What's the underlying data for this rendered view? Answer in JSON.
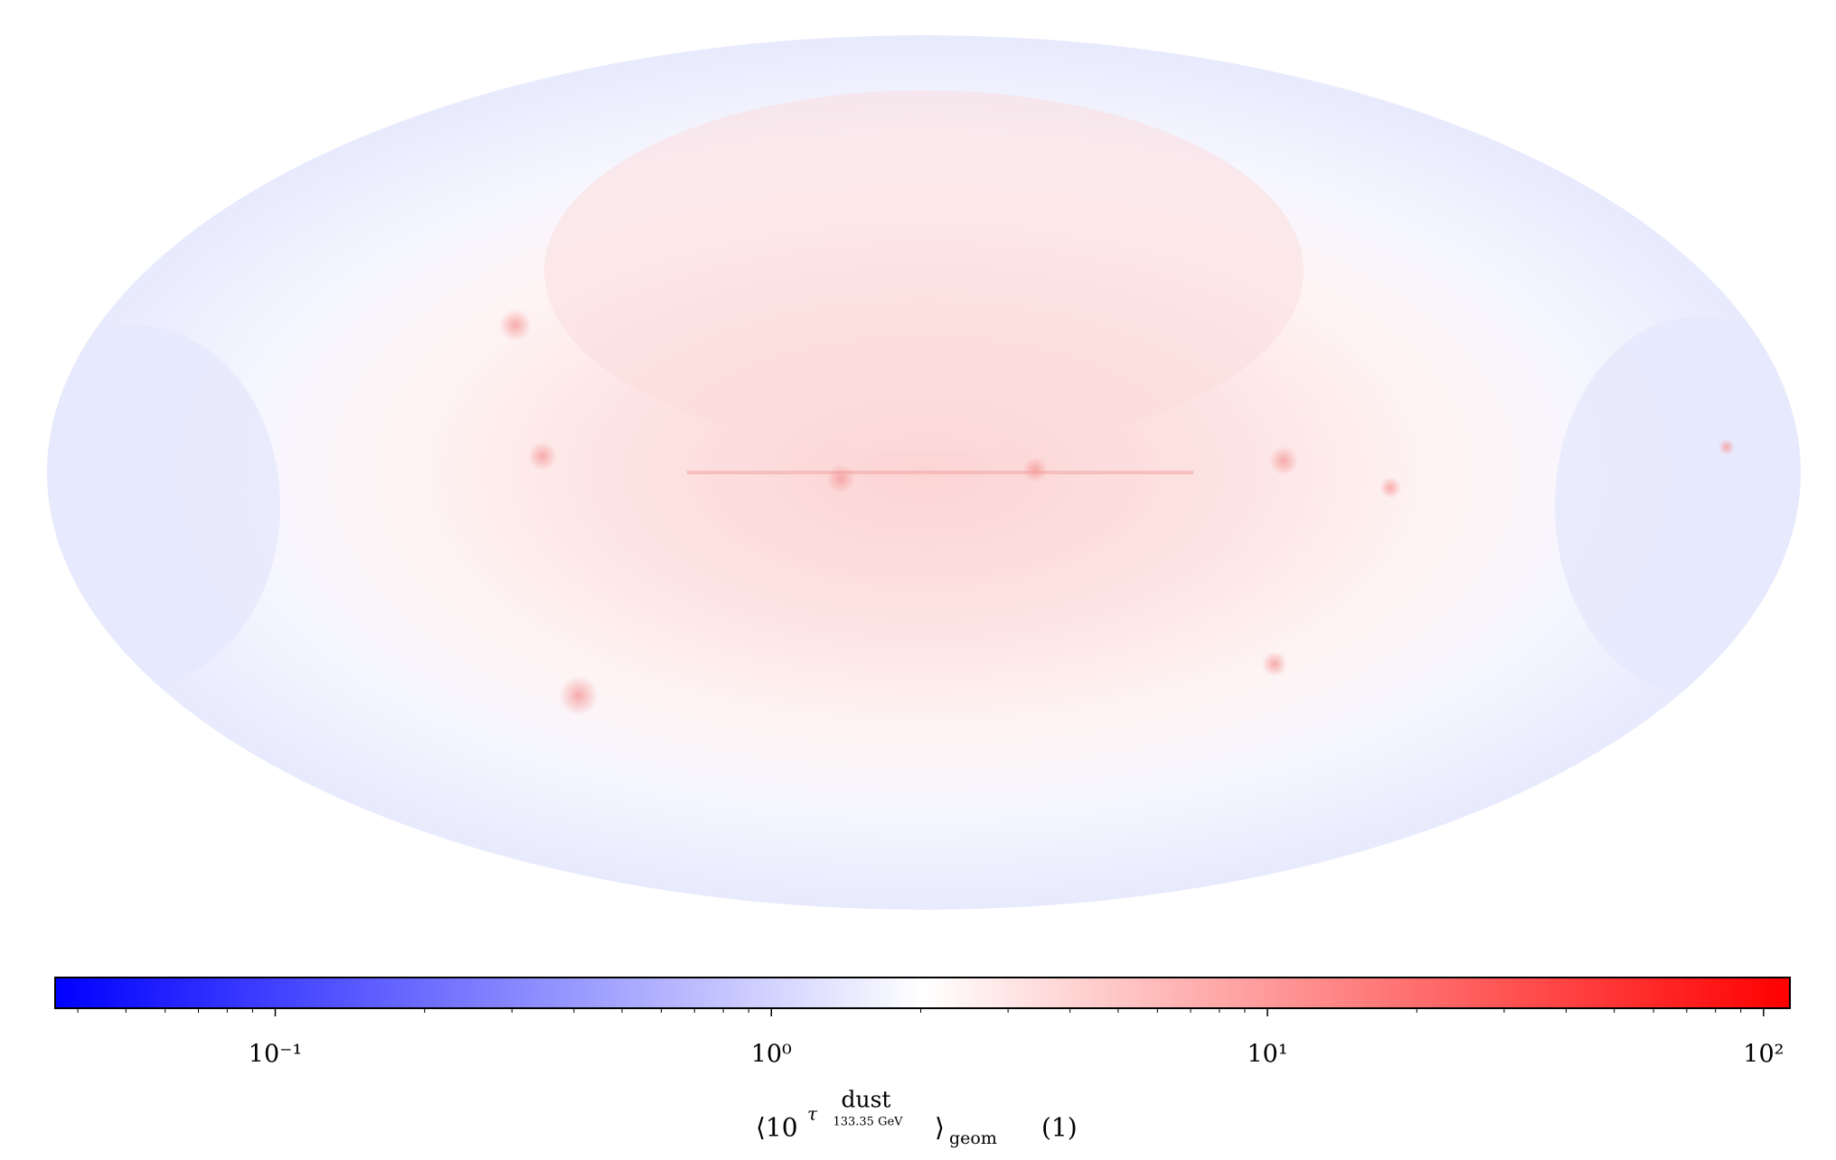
{
  "chart_data": {
    "type": "skymap",
    "projection": "mollweide",
    "colormap": "bwr",
    "colorbar": {
      "log_scale": true,
      "clim": [
        0.036,
        113
      ],
      "ticks": [
        {
          "value": 0.1,
          "label": "10⁻¹"
        },
        {
          "value": 1,
          "label": "10⁰"
        },
        {
          "value": 10,
          "label": "10¹"
        },
        {
          "value": 100,
          "label": "10²"
        }
      ],
      "minor_ticks": [
        0.04,
        0.05,
        0.06,
        0.07,
        0.08,
        0.09,
        0.2,
        0.3,
        0.4,
        0.5,
        0.6,
        0.7,
        0.8,
        0.9,
        2,
        3,
        4,
        5,
        6,
        7,
        8,
        9,
        20,
        30,
        40,
        50,
        60,
        70,
        80,
        90
      ],
      "label": {
        "open": "⟨10",
        "exponent": "τ",
        "superscript": "dust",
        "subscript": "133.35 GeV",
        "close": "⟩",
        "suffix": "geom",
        "unit": "(1)"
      }
    }
  }
}
